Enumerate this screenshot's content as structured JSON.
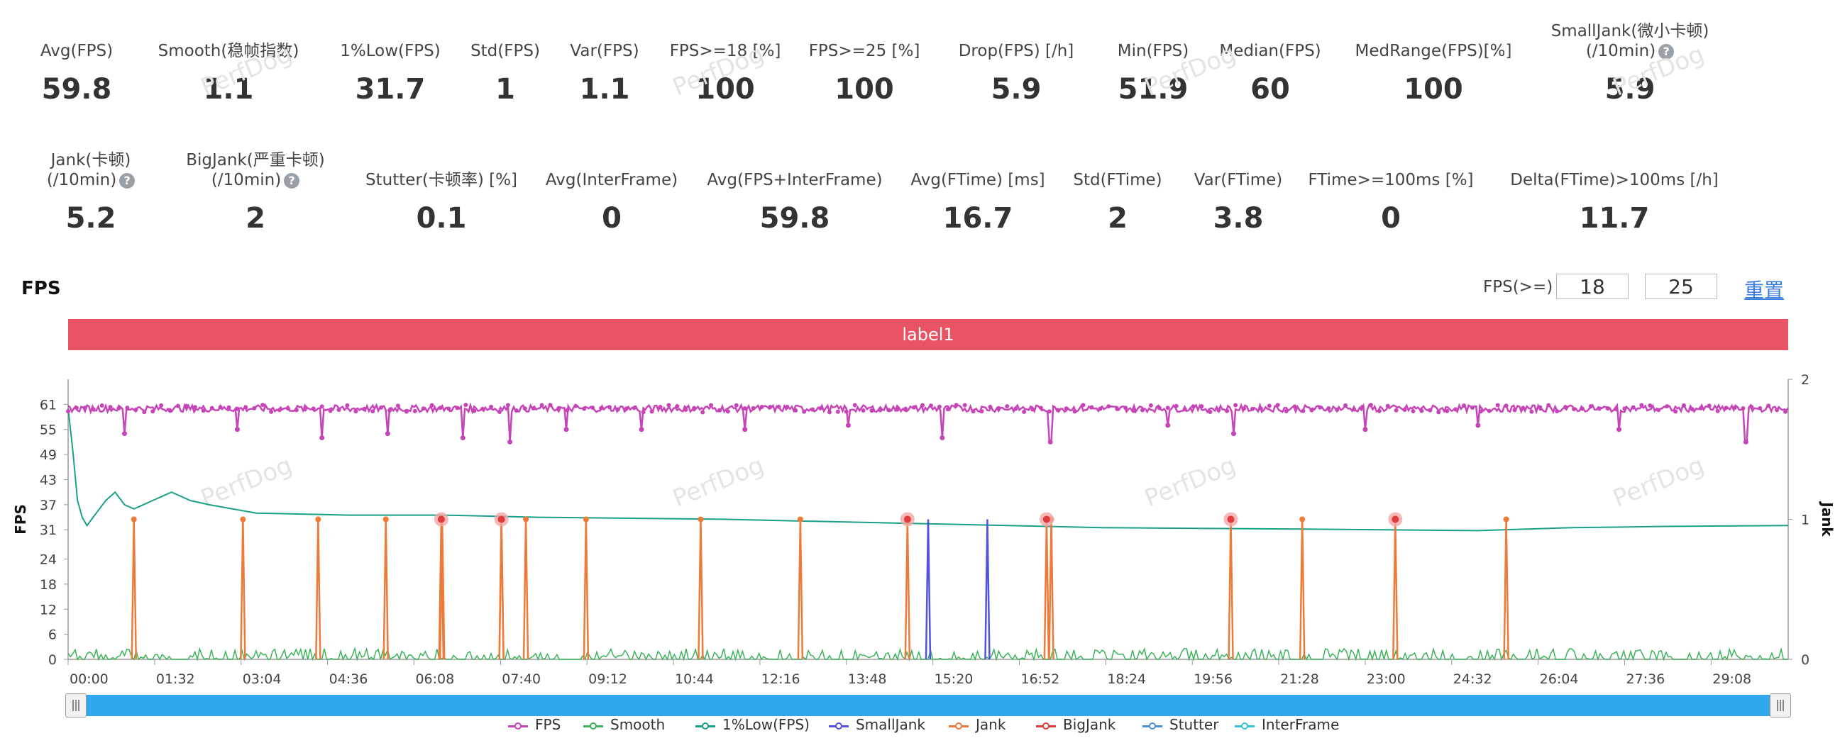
{
  "metrics_row1": [
    {
      "label": "Avg(FPS)",
      "value": "59.8",
      "help": false
    },
    {
      "label": "Smooth(稳帧指数)",
      "value": "1.1",
      "help": true
    },
    {
      "label": "1%Low(FPS)",
      "value": "31.7",
      "help": false
    },
    {
      "label": "Std(FPS)",
      "value": "1",
      "help": false
    },
    {
      "label": "Var(FPS)",
      "value": "1.1",
      "help": false
    },
    {
      "label": "FPS>=18 [%]",
      "value": "100",
      "help": false
    },
    {
      "label": "FPS>=25 [%]",
      "value": "100",
      "help": false
    },
    {
      "label": "Drop(FPS) [/h]",
      "value": "5.9",
      "help": true
    },
    {
      "label": "Min(FPS)",
      "value": "51.9",
      "help": false
    },
    {
      "label": "Median(FPS)",
      "value": "60",
      "help": false
    },
    {
      "label": "MedRange(FPS)[%]",
      "value": "100",
      "help": false
    },
    {
      "label": "SmallJank(微小卡顿)",
      "label2": "(/10min)",
      "value": "5.9",
      "help": true
    }
  ],
  "metrics_row2": [
    {
      "label": "Jank(卡顿)",
      "label2": "(/10min)",
      "value": "5.2",
      "help": true
    },
    {
      "label": "BigJank(严重卡顿)",
      "label2": "(/10min)",
      "value": "2",
      "help": true
    },
    {
      "label": "Stutter(卡顿率) [%]",
      "value": "0.1",
      "help": false
    },
    {
      "label": "Avg(InterFrame)",
      "value": "0",
      "help": false
    },
    {
      "label": "Avg(FPS+InterFrame)",
      "value": "59.8",
      "help": false
    },
    {
      "label": "Avg(FTime) [ms]",
      "value": "16.7",
      "help": false
    },
    {
      "label": "Std(FTime)",
      "value": "2",
      "help": false
    },
    {
      "label": "Var(FTime)",
      "value": "3.8",
      "help": false
    },
    {
      "label": "FTime>=100ms [%]",
      "value": "0",
      "help": false
    },
    {
      "label": "Delta(FTime)>100ms [/h]",
      "value": "11.7",
      "help": true
    }
  ],
  "help_glyph": "?",
  "watermark": "PerfDog",
  "section_title": "FPS",
  "threshold": {
    "label": "FPS(>=)",
    "low": "18",
    "high": "25",
    "reset": "重置"
  },
  "label_bar": "label1",
  "chart_data": {
    "type": "line",
    "xlabel": "",
    "ylabel": "FPS",
    "y2label": "Jank",
    "yticks": [
      0,
      6,
      12,
      18,
      24,
      31,
      37,
      43,
      49,
      55,
      61
    ],
    "ylim": [
      0,
      67
    ],
    "y2ticks": [
      0,
      1,
      2
    ],
    "y2lim": [
      0,
      2
    ],
    "xticks": [
      "00:00",
      "01:32",
      "03:04",
      "04:36",
      "06:08",
      "07:40",
      "09:12",
      "10:44",
      "12:16",
      "13:48",
      "15:20",
      "16:52",
      "18:24",
      "19:56",
      "21:28",
      "23:00",
      "24:32",
      "26:04",
      "27:36",
      "29:08"
    ],
    "duration_seconds": 1830,
    "fps_typical": 60,
    "fps_dips": [
      [
        60,
        54
      ],
      [
        180,
        55
      ],
      [
        270,
        53
      ],
      [
        340,
        54
      ],
      [
        420,
        53
      ],
      [
        470,
        52
      ],
      [
        530,
        55
      ],
      [
        610,
        55
      ],
      [
        720,
        55
      ],
      [
        830,
        56
      ],
      [
        930,
        53
      ],
      [
        1045,
        52
      ],
      [
        1170,
        56
      ],
      [
        1240,
        54
      ],
      [
        1380,
        55
      ],
      [
        1500,
        56
      ],
      [
        1650,
        55
      ],
      [
        1785,
        52
      ]
    ],
    "low1_series": [
      [
        0,
        60
      ],
      [
        5,
        50
      ],
      [
        10,
        38
      ],
      [
        15,
        34
      ],
      [
        20,
        32
      ],
      [
        30,
        35
      ],
      [
        40,
        38
      ],
      [
        50,
        40
      ],
      [
        60,
        37
      ],
      [
        70,
        36
      ],
      [
        80,
        37
      ],
      [
        90,
        38
      ],
      [
        100,
        39
      ],
      [
        110,
        40
      ],
      [
        120,
        39
      ],
      [
        130,
        38
      ],
      [
        150,
        37
      ],
      [
        200,
        35
      ],
      [
        300,
        34.5
      ],
      [
        400,
        34.5
      ],
      [
        500,
        34
      ],
      [
        700,
        33.5
      ],
      [
        900,
        32.5
      ],
      [
        1000,
        32
      ],
      [
        1100,
        31.5
      ],
      [
        1300,
        31.2
      ],
      [
        1400,
        31
      ],
      [
        1500,
        30.8
      ],
      [
        1600,
        31.5
      ],
      [
        1700,
        31.8
      ],
      [
        1830,
        32
      ]
    ],
    "jank_times": [
      70,
      186,
      266,
      338,
      398,
      461,
      487,
      551,
      673,
      779,
      1046,
      1313,
      1530
    ],
    "bigjank_times": [
      397,
      461,
      893,
      1041,
      1237,
      1412
    ],
    "smalljank_times": [
      915,
      978
    ],
    "series": [
      {
        "name": "FPS",
        "color": "#c744b8"
      },
      {
        "name": "Smooth",
        "color": "#3cb35b"
      },
      {
        "name": "1%Low(FPS)",
        "color": "#1aa088"
      },
      {
        "name": "SmallJank",
        "color": "#5252e0"
      },
      {
        "name": "Jank",
        "color": "#ee7a3a"
      },
      {
        "name": "BigJank",
        "color": "#e03a3a"
      },
      {
        "name": "Stutter",
        "color": "#4a8fe0"
      },
      {
        "name": "InterFrame",
        "color": "#35c4d8"
      }
    ]
  }
}
